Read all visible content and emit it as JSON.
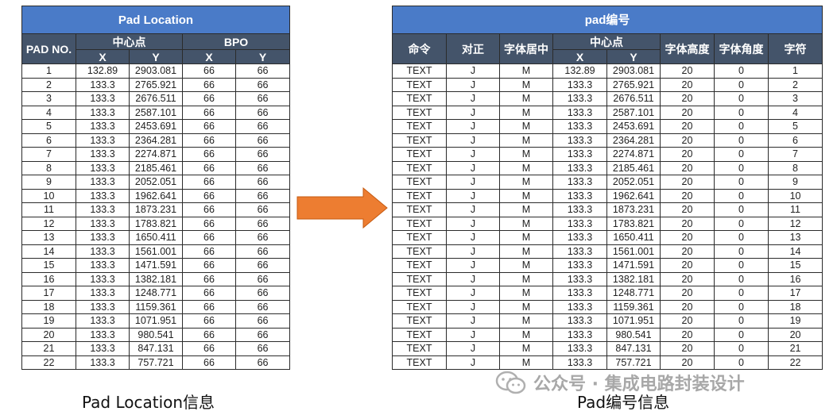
{
  "left_table": {
    "title": "Pad Location",
    "headers": {
      "pad_no": "PAD NO.",
      "center_group": "中心点",
      "bpo_group": "BPO",
      "x": "X",
      "y": "Y",
      "bpo_x": "X",
      "bpo_y": "Y"
    },
    "rows": [
      {
        "no": "1",
        "x": "132.89",
        "y": "2903.081",
        "bx": "66",
        "by": "66"
      },
      {
        "no": "2",
        "x": "133.3",
        "y": "2765.921",
        "bx": "66",
        "by": "66"
      },
      {
        "no": "3",
        "x": "133.3",
        "y": "2676.511",
        "bx": "66",
        "by": "66"
      },
      {
        "no": "4",
        "x": "133.3",
        "y": "2587.101",
        "bx": "66",
        "by": "66"
      },
      {
        "no": "5",
        "x": "133.3",
        "y": "2453.691",
        "bx": "66",
        "by": "66"
      },
      {
        "no": "6",
        "x": "133.3",
        "y": "2364.281",
        "bx": "66",
        "by": "66"
      },
      {
        "no": "7",
        "x": "133.3",
        "y": "2274.871",
        "bx": "66",
        "by": "66"
      },
      {
        "no": "8",
        "x": "133.3",
        "y": "2185.461",
        "bx": "66",
        "by": "66"
      },
      {
        "no": "9",
        "x": "133.3",
        "y": "2052.051",
        "bx": "66",
        "by": "66"
      },
      {
        "no": "10",
        "x": "133.3",
        "y": "1962.641",
        "bx": "66",
        "by": "66"
      },
      {
        "no": "11",
        "x": "133.3",
        "y": "1873.231",
        "bx": "66",
        "by": "66"
      },
      {
        "no": "12",
        "x": "133.3",
        "y": "1783.821",
        "bx": "66",
        "by": "66"
      },
      {
        "no": "13",
        "x": "133.3",
        "y": "1650.411",
        "bx": "66",
        "by": "66"
      },
      {
        "no": "14",
        "x": "133.3",
        "y": "1561.001",
        "bx": "66",
        "by": "66"
      },
      {
        "no": "15",
        "x": "133.3",
        "y": "1471.591",
        "bx": "66",
        "by": "66"
      },
      {
        "no": "16",
        "x": "133.3",
        "y": "1382.181",
        "bx": "66",
        "by": "66"
      },
      {
        "no": "17",
        "x": "133.3",
        "y": "1248.771",
        "bx": "66",
        "by": "66"
      },
      {
        "no": "18",
        "x": "133.3",
        "y": "1159.361",
        "bx": "66",
        "by": "66"
      },
      {
        "no": "19",
        "x": "133.3",
        "y": "1071.951",
        "bx": "66",
        "by": "66"
      },
      {
        "no": "20",
        "x": "133.3",
        "y": "980.541",
        "bx": "66",
        "by": "66"
      },
      {
        "no": "21",
        "x": "133.3",
        "y": "847.131",
        "bx": "66",
        "by": "66"
      },
      {
        "no": "22",
        "x": "133.3",
        "y": "757.721",
        "bx": "66",
        "by": "66"
      }
    ]
  },
  "right_table": {
    "title": "pad编号",
    "headers": {
      "command": "命令",
      "align": "对正",
      "font_center": "字体居中",
      "center_group": "中心点",
      "x": "X",
      "y": "Y",
      "font_height": "字体高度",
      "font_angle": "字体角度",
      "char": "字符"
    },
    "rows": [
      {
        "cmd": "TEXT",
        "align": "J",
        "fc": "M",
        "x": "132.89",
        "y": "2903.081",
        "fh": "20",
        "fa": "0",
        "ch": "1"
      },
      {
        "cmd": "TEXT",
        "align": "J",
        "fc": "M",
        "x": "133.3",
        "y": "2765.921",
        "fh": "20",
        "fa": "0",
        "ch": "2"
      },
      {
        "cmd": "TEXT",
        "align": "J",
        "fc": "M",
        "x": "133.3",
        "y": "2676.511",
        "fh": "20",
        "fa": "0",
        "ch": "3"
      },
      {
        "cmd": "TEXT",
        "align": "J",
        "fc": "M",
        "x": "133.3",
        "y": "2587.101",
        "fh": "20",
        "fa": "0",
        "ch": "4"
      },
      {
        "cmd": "TEXT",
        "align": "J",
        "fc": "M",
        "x": "133.3",
        "y": "2453.691",
        "fh": "20",
        "fa": "0",
        "ch": "5"
      },
      {
        "cmd": "TEXT",
        "align": "J",
        "fc": "M",
        "x": "133.3",
        "y": "2364.281",
        "fh": "20",
        "fa": "0",
        "ch": "6"
      },
      {
        "cmd": "TEXT",
        "align": "J",
        "fc": "M",
        "x": "133.3",
        "y": "2274.871",
        "fh": "20",
        "fa": "0",
        "ch": "7"
      },
      {
        "cmd": "TEXT",
        "align": "J",
        "fc": "M",
        "x": "133.3",
        "y": "2185.461",
        "fh": "20",
        "fa": "0",
        "ch": "8"
      },
      {
        "cmd": "TEXT",
        "align": "J",
        "fc": "M",
        "x": "133.3",
        "y": "2052.051",
        "fh": "20",
        "fa": "0",
        "ch": "9"
      },
      {
        "cmd": "TEXT",
        "align": "J",
        "fc": "M",
        "x": "133.3",
        "y": "1962.641",
        "fh": "20",
        "fa": "0",
        "ch": "10"
      },
      {
        "cmd": "TEXT",
        "align": "J",
        "fc": "M",
        "x": "133.3",
        "y": "1873.231",
        "fh": "20",
        "fa": "0",
        "ch": "11"
      },
      {
        "cmd": "TEXT",
        "align": "J",
        "fc": "M",
        "x": "133.3",
        "y": "1783.821",
        "fh": "20",
        "fa": "0",
        "ch": "12"
      },
      {
        "cmd": "TEXT",
        "align": "J",
        "fc": "M",
        "x": "133.3",
        "y": "1650.411",
        "fh": "20",
        "fa": "0",
        "ch": "13"
      },
      {
        "cmd": "TEXT",
        "align": "J",
        "fc": "M",
        "x": "133.3",
        "y": "1561.001",
        "fh": "20",
        "fa": "0",
        "ch": "14"
      },
      {
        "cmd": "TEXT",
        "align": "J",
        "fc": "M",
        "x": "133.3",
        "y": "1471.591",
        "fh": "20",
        "fa": "0",
        "ch": "15"
      },
      {
        "cmd": "TEXT",
        "align": "J",
        "fc": "M",
        "x": "133.3",
        "y": "1382.181",
        "fh": "20",
        "fa": "0",
        "ch": "16"
      },
      {
        "cmd": "TEXT",
        "align": "J",
        "fc": "M",
        "x": "133.3",
        "y": "1248.771",
        "fh": "20",
        "fa": "0",
        "ch": "17"
      },
      {
        "cmd": "TEXT",
        "align": "J",
        "fc": "M",
        "x": "133.3",
        "y": "1159.361",
        "fh": "20",
        "fa": "0",
        "ch": "18"
      },
      {
        "cmd": "TEXT",
        "align": "J",
        "fc": "M",
        "x": "133.3",
        "y": "1071.951",
        "fh": "20",
        "fa": "0",
        "ch": "19"
      },
      {
        "cmd": "TEXT",
        "align": "J",
        "fc": "M",
        "x": "133.3",
        "y": "980.541",
        "fh": "20",
        "fa": "0",
        "ch": "20"
      },
      {
        "cmd": "TEXT",
        "align": "J",
        "fc": "M",
        "x": "133.3",
        "y": "847.131",
        "fh": "20",
        "fa": "0",
        "ch": "21"
      },
      {
        "cmd": "TEXT",
        "align": "J",
        "fc": "M",
        "x": "133.3",
        "y": "757.721",
        "fh": "20",
        "fa": "0",
        "ch": "22"
      }
    ]
  },
  "arrow": {
    "icon": "right-arrow-icon",
    "color": "#ed7d31"
  },
  "captions": {
    "left": "Pad Location信息",
    "right": "Pad编号信息"
  },
  "watermark": {
    "icon": "wechat-icon",
    "text": "公众号 · 集成电路封装设计"
  },
  "colors": {
    "title_bar": "#4a7bc8",
    "header_bar": "#44546a",
    "arrow": "#ed7d31"
  }
}
